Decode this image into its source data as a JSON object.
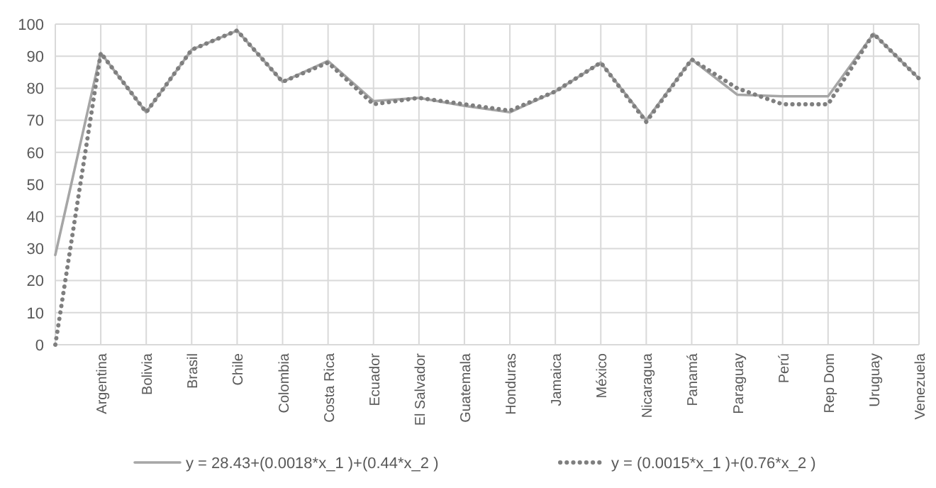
{
  "chart_data": {
    "type": "line",
    "categories": [
      null,
      "Argentina",
      "Bolivia",
      "Brasil",
      "Chile",
      "Colombia",
      "Costa Rica",
      "Ecuador",
      "El Salvador",
      "Guatemala",
      "Honduras",
      "Jamaica",
      "México",
      "Nicaragua",
      "Panamá",
      "Paraguay",
      "Perú",
      "Rep Dom",
      "Uruguay",
      "Venezuela"
    ],
    "series": [
      {
        "name": "y = 28.43+(0.0018*x_1 )+(0.44*x_2 )",
        "color": "#a6a6a6",
        "line_style": "solid",
        "values": [
          28,
          91,
          72.5,
          92,
          98,
          82,
          88.5,
          76,
          77,
          74.5,
          72.5,
          79,
          88,
          70,
          89,
          78,
          77.5,
          77.5,
          97,
          83
        ]
      },
      {
        "name": "y = (0.0015*x_1 )+(0.76*x_2 )",
        "color": "#7f7f7f",
        "line_style": "dotted",
        "values": [
          0,
          91,
          72.5,
          92,
          98,
          82,
          88,
          75,
          77,
          75,
          73,
          79,
          88,
          69.5,
          89,
          80,
          75,
          75,
          97,
          83
        ]
      }
    ],
    "ylim": [
      0,
      100
    ],
    "yticks": [
      0,
      10,
      20,
      30,
      40,
      50,
      60,
      70,
      80,
      90,
      100
    ],
    "grid": true,
    "legend": "bottom"
  }
}
